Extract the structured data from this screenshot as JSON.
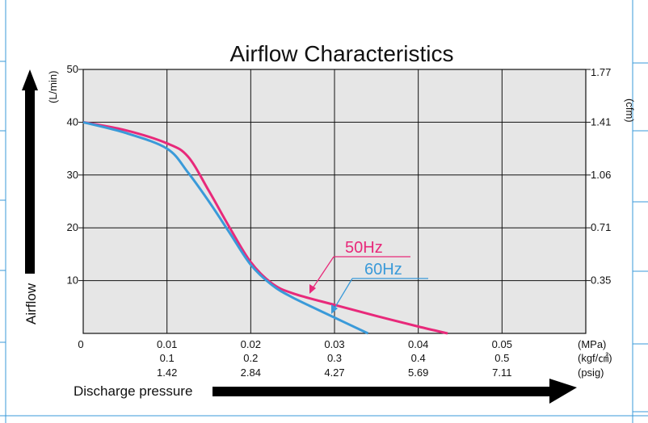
{
  "colors": {
    "s50": "#e8297a",
    "s60": "#3a9ad9",
    "plot_bg": "#e6e6e6",
    "grid": "#111111",
    "frame": "#3a9ad9"
  },
  "chart_data": {
    "type": "line",
    "title": "Airflow Characteristics",
    "ylabel": "Airflow",
    "xlabel": "Discharge pressure",
    "xlim": [
      0,
      0.06
    ],
    "ylim": [
      0,
      50
    ],
    "grid": true,
    "y_ticks": [
      "10",
      "20",
      "30",
      "40",
      "50"
    ],
    "y_unit": "(L/min)",
    "y2_ticks": [
      "0.35",
      "0.71",
      "1.06",
      "1.41",
      "1.77"
    ],
    "y2_unit": "(cfm)",
    "x_origin": "0",
    "x_ticks_mpa": [
      "0.01",
      "0.02",
      "0.03",
      "0.04",
      "0.05"
    ],
    "x_ticks_kgf": [
      "0.1",
      "0.2",
      "0.3",
      "0.4",
      "0.5"
    ],
    "x_ticks_psig": [
      "1.42",
      "2.84",
      "4.27",
      "5.69",
      "7.11"
    ],
    "x_units": [
      "(MPa)",
      "(kgf/㎠)",
      "(psig)"
    ],
    "series": [
      {
        "name": "50Hz",
        "color": "#e8297a",
        "x": [
          0,
          0.005,
          0.01,
          0.0125,
          0.015,
          0.0175,
          0.02,
          0.0225,
          0.025,
          0.03,
          0.035,
          0.04,
          0.0435
        ],
        "y": [
          40,
          38.5,
          36,
          33.5,
          27,
          20,
          13.5,
          9.5,
          7.6,
          5.4,
          3.3,
          1.3,
          0
        ]
      },
      {
        "name": "60Hz",
        "color": "#3a9ad9",
        "x": [
          0,
          0.005,
          0.01,
          0.0125,
          0.015,
          0.0175,
          0.02,
          0.0225,
          0.025,
          0.03,
          0.034
        ],
        "y": [
          40,
          38,
          35,
          30.5,
          25,
          19,
          13,
          9.2,
          6.8,
          3,
          0
        ]
      }
    ]
  }
}
